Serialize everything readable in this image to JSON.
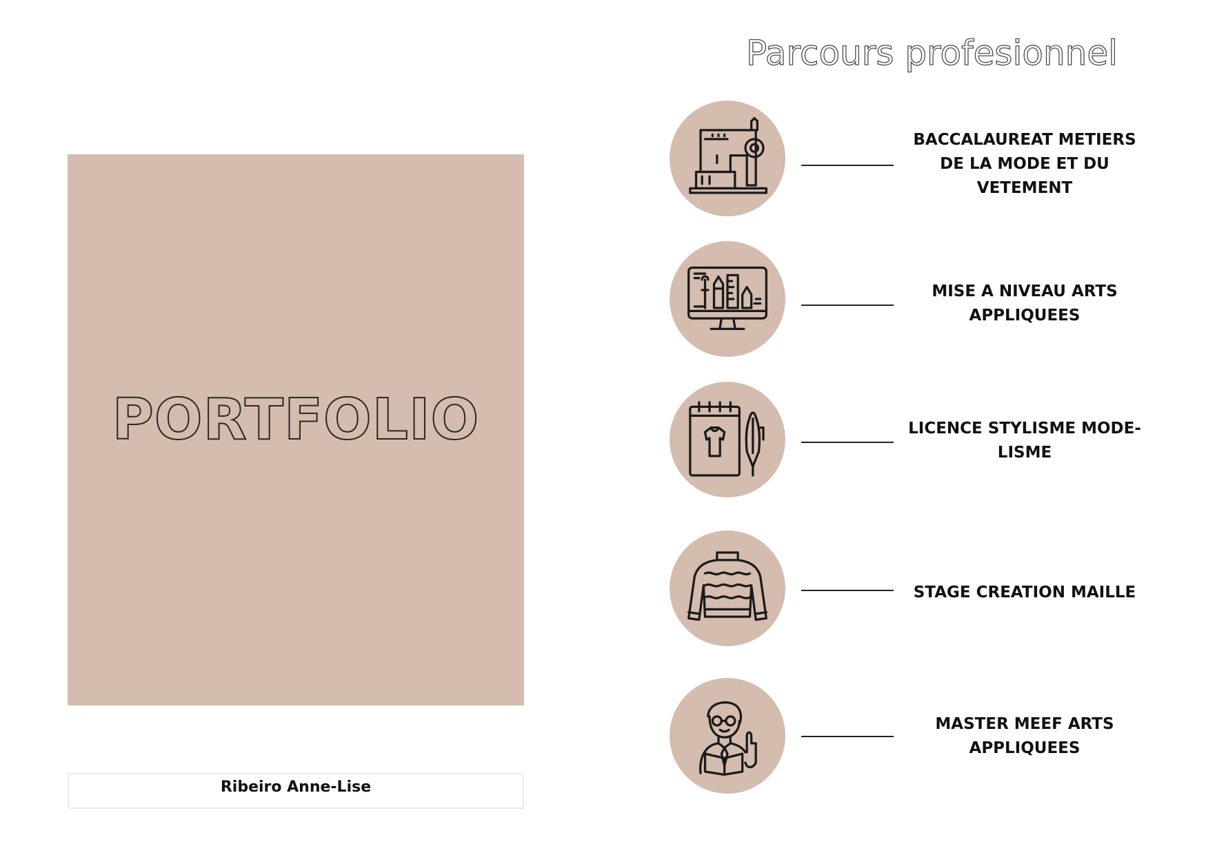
{
  "heading": "Parcours profesionnel",
  "cover": {
    "title": "PORTFOLIO",
    "background": "#d4bcae"
  },
  "author": "Ribeiro Anne-Lise",
  "steps": [
    {
      "icon": "sewing-machine-icon",
      "label": "BACCALAUREAT METIERS DE LA MODE ET DU VETEMENT"
    },
    {
      "icon": "design-monitor-icon",
      "label": "MISE A NIVEAU ARTS APPLIQUEES"
    },
    {
      "icon": "sketchbook-pen-icon",
      "label": "LICENCE STYLISME MODE-LISME"
    },
    {
      "icon": "sweater-icon",
      "label": "STAGE CREATION MAILLE"
    },
    {
      "icon": "teacher-icon",
      "label": "MASTER MEEF ARTS APPLIQUEES"
    }
  ]
}
